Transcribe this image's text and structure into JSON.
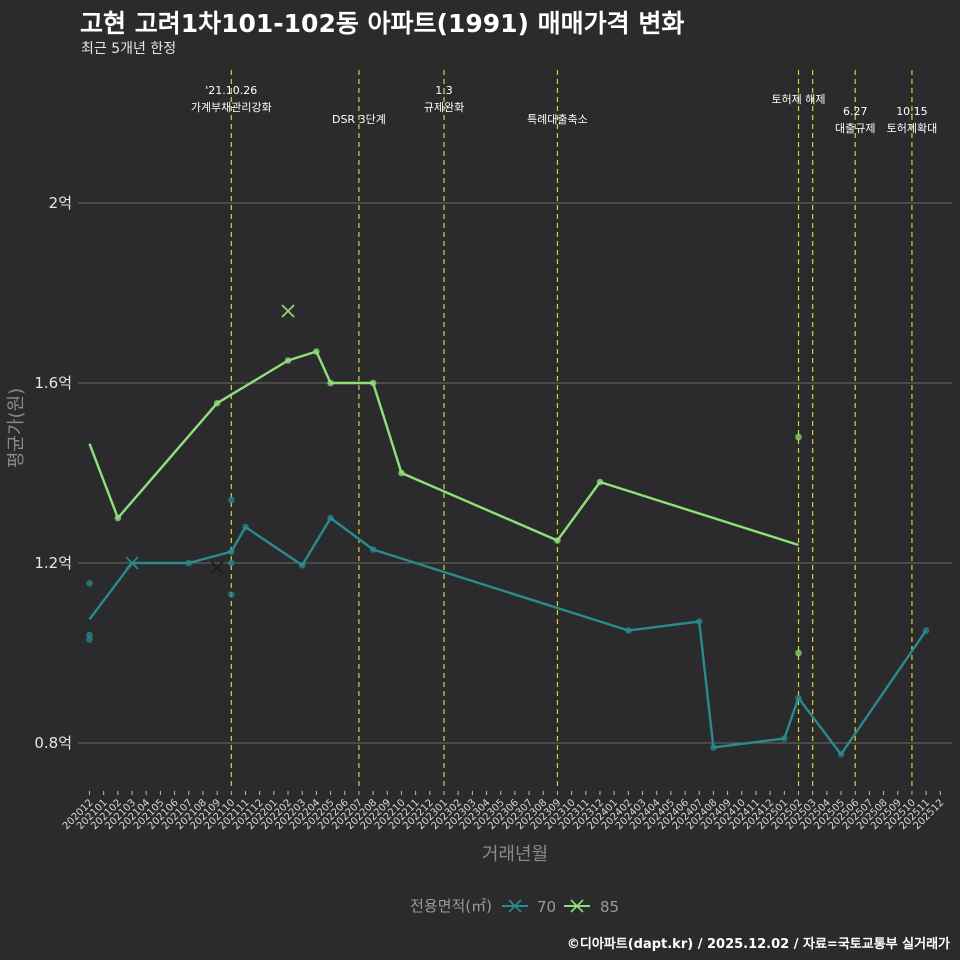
{
  "title": "고현 고려1차101-102동 아파트(1991) 매매가격 변화",
  "subtitle": "최근 5개년 한정",
  "footer": "©디아파트(dapt.kr) / 2025.12.02 / 자료=국토교통부 실거래가",
  "colors": {
    "background": "#2b2b2d",
    "grid": "#6b6b6b",
    "event_line": "#d4d62a",
    "series_70": "#2a8a8c",
    "series_85": "#8fe07a"
  },
  "chart_data": {
    "type": "line",
    "xlabel": "거래년월",
    "ylabel": "평균가(원)",
    "ylim": [
      0.7,
      2.3
    ],
    "yticks": [
      0.8,
      1.2,
      1.6,
      2.0
    ],
    "ytick_labels": [
      "0.8억",
      "1.2억",
      "1.6억",
      "2억"
    ],
    "x_categories": [
      "202012",
      "202101",
      "202102",
      "202103",
      "202104",
      "202105",
      "202106",
      "202107",
      "202108",
      "202109",
      "202110",
      "202111",
      "202112",
      "202201",
      "202202",
      "202203",
      "202204",
      "202205",
      "202206",
      "202207",
      "202208",
      "202209",
      "202210",
      "202211",
      "202212",
      "202301",
      "202302",
      "202303",
      "202304",
      "202305",
      "202306",
      "202307",
      "202308",
      "202309",
      "202310",
      "202311",
      "202312",
      "202401",
      "202402",
      "202403",
      "202404",
      "202405",
      "202406",
      "202407",
      "202408",
      "202409",
      "202410",
      "202411",
      "202412",
      "202501",
      "202502",
      "202503",
      "202504",
      "202505",
      "202506",
      "202507",
      "202508",
      "202509",
      "202510",
      "202511",
      "202512"
    ],
    "x_tick_labels": [
      "202012",
      "202101",
      "202102",
      "202103",
      "202104",
      "202105",
      "202106",
      "202107",
      "202108",
      "202109",
      "202110",
      "202111",
      "202112",
      "202201",
      "202202",
      "202203",
      "202204",
      "202205",
      "202206",
      "202207",
      "202208",
      "202209",
      "202210",
      "202211",
      "202212",
      "202301",
      "202302",
      "202303",
      "202304",
      "202305",
      "202306",
      "202307",
      "202308",
      "202309",
      "202310",
      "202311",
      "202312",
      "202401",
      "202402",
      "202403",
      "202404",
      "202405",
      "202406",
      "202407",
      "202408",
      "202409",
      "202410",
      "202411",
      "202412",
      "202501",
      "202502",
      "202503",
      "202504",
      "202505",
      "202506",
      "202507",
      "202508",
      "202509",
      "202510",
      "202511",
      "202512"
    ],
    "legend_title": "전용면적(㎡)",
    "legend_position": "bottom",
    "series": [
      {
        "name": "70",
        "color": "#2a8a8c",
        "line": [
          {
            "x": "202012",
            "y": 1.075
          },
          {
            "x": "202103",
            "y": 1.2
          },
          {
            "x": "202107",
            "y": 1.2
          },
          {
            "x": "202110",
            "y": 1.225
          },
          {
            "x": "202111",
            "y": 1.28
          },
          {
            "x": "202203",
            "y": 1.195
          },
          {
            "x": "202205",
            "y": 1.3
          },
          {
            "x": "202208",
            "y": 1.23
          },
          {
            "x": "202402",
            "y": 1.05
          },
          {
            "x": "202407",
            "y": 1.07
          },
          {
            "x": "202408",
            "y": 0.79
          },
          {
            "x": "202501",
            "y": 0.81
          },
          {
            "x": "202502",
            "y": 0.9
          },
          {
            "x": "202505",
            "y": 0.775
          },
          {
            "x": "202511",
            "y": 1.05
          }
        ],
        "points": [
          {
            "x": "202012",
            "y": 1.155
          },
          {
            "x": "202012",
            "y": 1.04
          },
          {
            "x": "202012",
            "y": 1.03
          },
          {
            "x": "202107",
            "y": 1.2
          },
          {
            "x": "202110",
            "y": 1.34
          },
          {
            "x": "202110",
            "y": 1.2
          },
          {
            "x": "202110",
            "y": 1.13
          },
          {
            "x": "202110",
            "y": 1.225
          },
          {
            "x": "202111",
            "y": 1.28
          },
          {
            "x": "202203",
            "y": 1.195
          },
          {
            "x": "202205",
            "y": 1.3
          },
          {
            "x": "202208",
            "y": 1.23
          },
          {
            "x": "202402",
            "y": 1.05
          },
          {
            "x": "202407",
            "y": 1.07
          },
          {
            "x": "202408",
            "y": 0.79
          },
          {
            "x": "202501",
            "y": 0.81
          },
          {
            "x": "202502",
            "y": 0.9
          },
          {
            "x": "202505",
            "y": 0.775
          },
          {
            "x": "202511",
            "y": 1.05
          }
        ],
        "x_marks": [
          {
            "x": "202103",
            "y": 1.2
          },
          {
            "x": "202109",
            "y": 1.19
          }
        ]
      },
      {
        "name": "85",
        "color": "#8fe07a",
        "line": [
          {
            "x": "202012",
            "y": 1.465
          },
          {
            "x": "202102",
            "y": 1.3
          },
          {
            "x": "202109",
            "y": 1.555
          },
          {
            "x": "202202",
            "y": 1.65
          },
          {
            "x": "202204",
            "y": 1.67
          },
          {
            "x": "202205",
            "y": 1.6
          },
          {
            "x": "202208",
            "y": 1.6
          },
          {
            "x": "202210",
            "y": 1.4
          },
          {
            "x": "202309",
            "y": 1.25
          },
          {
            "x": "202312",
            "y": 1.38
          },
          {
            "x": "202502",
            "y": 1.24
          }
        ],
        "points": [
          {
            "x": "202102",
            "y": 1.3
          },
          {
            "x": "202109",
            "y": 1.555
          },
          {
            "x": "202202",
            "y": 1.65
          },
          {
            "x": "202204",
            "y": 1.67
          },
          {
            "x": "202205",
            "y": 1.6
          },
          {
            "x": "202208",
            "y": 1.6
          },
          {
            "x": "202210",
            "y": 1.4
          },
          {
            "x": "202309",
            "y": 1.25
          },
          {
            "x": "202312",
            "y": 1.38
          },
          {
            "x": "202502",
            "y": 1.48
          },
          {
            "x": "202502",
            "y": 1.0
          }
        ],
        "x_marks": [
          {
            "x": "202202",
            "y": 1.76
          }
        ]
      }
    ],
    "events": [
      {
        "x": "202110",
        "lines": [
          "'21.10.26",
          "가계부채관리강화"
        ],
        "row": 0
      },
      {
        "x": "202207",
        "lines": [
          "DSR 3단계"
        ],
        "row": 1
      },
      {
        "x": "202301",
        "lines": [
          "1.3",
          "규제완화"
        ],
        "row": 0
      },
      {
        "x": "202309",
        "lines": [
          "특례대출축소"
        ],
        "row": 1
      },
      {
        "x": "202502",
        "lines": [
          "토허제 해제"
        ],
        "row": 0
      },
      {
        "x": "202503",
        "lines": [],
        "row": 0
      },
      {
        "x": "202506",
        "lines": [
          "6.27",
          "대출규제"
        ],
        "row": 1
      },
      {
        "x": "202510",
        "lines": [
          "10.15",
          "토허제확대"
        ],
        "row": 1
      }
    ]
  }
}
